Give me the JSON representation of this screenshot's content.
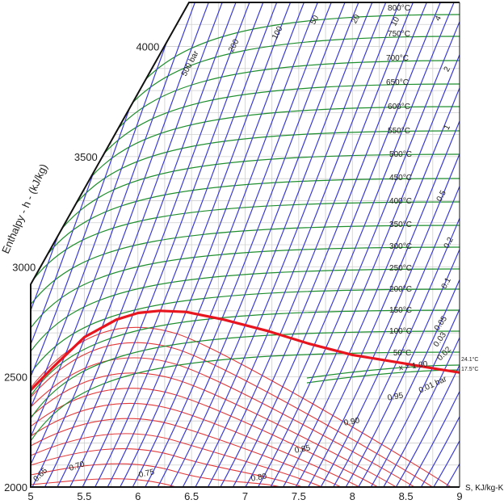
{
  "chart_data": {
    "type": "line",
    "xlabel": "S, KJ/kg-K",
    "ylabel": "Enthalpy - h - (kJ/kg)",
    "xlim": [
      5,
      9
    ],
    "ylim": [
      2000,
      4200
    ],
    "grid": true,
    "x_ticks": [
      "5",
      "5.5",
      "6",
      "6.5",
      "7",
      "7.5",
      "8",
      "8.5",
      "9"
    ],
    "y_ticks": [
      "2000",
      "2500",
      "3000",
      "3500",
      "4000"
    ],
    "series": [
      {
        "name": "x = 1.00",
        "color": "#e8141e",
        "x": [
          5.0,
          5.2,
          5.5,
          5.8,
          6.0,
          6.2,
          6.45,
          6.8,
          7.2,
          7.6,
          8.0,
          8.5,
          8.8,
          9.0
        ],
        "y": [
          2440,
          2540,
          2680,
          2760,
          2790,
          2800,
          2795,
          2760,
          2710,
          2650,
          2600,
          2560,
          2535,
          2520
        ]
      }
    ],
    "temperature_labels": [
      "800°C",
      "750°C",
      "700°C",
      "650°C",
      "600°C",
      "550°C",
      "500°C",
      "450°C",
      "400°C",
      "350°C",
      "300°C",
      "250°C",
      "200°C",
      "150°C",
      "100°C",
      "50°C"
    ],
    "pressure_labels": [
      "500 bar",
      "200",
      "100",
      "50",
      "20",
      "10",
      "4",
      "2",
      "1",
      "0.5",
      "0.2",
      "0.1",
      "0.05",
      "0.03",
      "0.02",
      "0.01 bar"
    ],
    "quality_labels": [
      "0.95",
      "0.90",
      "0.85",
      "0.80",
      "0.75",
      "0.70",
      "0.65"
    ],
    "side_labels": [
      "24.1°C",
      "17.5°C"
    ],
    "colors": {
      "isobar": "#3b3bd6",
      "isotherm": "#1f8f2e",
      "quality": "#e23a3a",
      "saturation": "#e8141e",
      "grid": "#cfcfcf",
      "frame": "#111111"
    }
  }
}
